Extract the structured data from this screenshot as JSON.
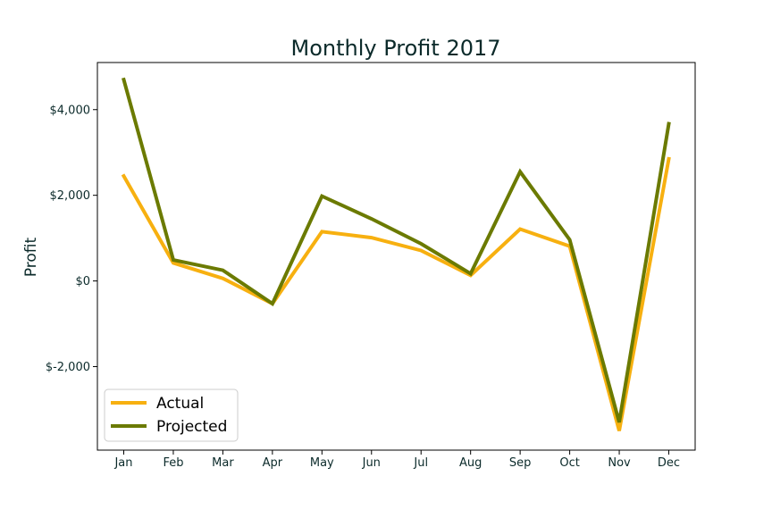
{
  "chart_data": {
    "type": "line",
    "title": "Monthly Profit 2017",
    "xlabel": "",
    "ylabel": "Profit",
    "categories": [
      "Jan",
      "Feb",
      "Mar",
      "Apr",
      "May",
      "Jun",
      "Jul",
      "Aug",
      "Sep",
      "Oct",
      "Nov",
      "Dec"
    ],
    "ylim": [
      -3950,
      5100
    ],
    "yticks": [
      -2000,
      0,
      2000,
      4000
    ],
    "ytick_labels": [
      "$-2,000",
      "$0",
      "$2,000",
      "$4,000"
    ],
    "grid": false,
    "legend_position": "lower-left",
    "series": [
      {
        "name": "Actual",
        "color": "#f7b010",
        "values": [
          2450,
          420,
          60,
          -530,
          1150,
          1010,
          710,
          130,
          1210,
          810,
          -3500,
          2850
        ]
      },
      {
        "name": "Projected",
        "color": "#6b7a00",
        "values": [
          4700,
          490,
          250,
          -530,
          1980,
          1450,
          870,
          170,
          2550,
          960,
          -3300,
          3670
        ]
      }
    ]
  },
  "colors": {
    "text": "#0b2a2a",
    "axis": "#000000",
    "background": "#ffffff"
  }
}
